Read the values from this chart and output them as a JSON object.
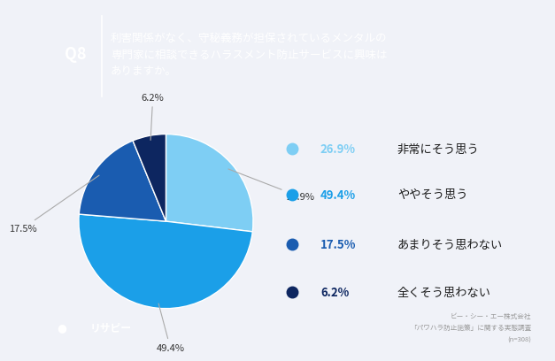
{
  "title_q": "Q8",
  "title_text": "利害関係がなく、守秘義務が担保されているメンタルの\n専門家に相談できるハラスメント防止サービスに興味は\nありますか。",
  "slices": [
    26.9,
    49.4,
    17.5,
    6.2
  ],
  "labels": [
    "26.9%",
    "49.4%",
    "17.5%",
    "6.2%"
  ],
  "legend_pcts": [
    "26.9%",
    "49.4%",
    "17.5%",
    "6.2%"
  ],
  "legend_texts": [
    "非常にそう思う",
    "ややそう思う",
    "あまりそう思わない",
    "全くそう思わない"
  ],
  "colors": [
    "#7ECEF4",
    "#1B9FE8",
    "#1A5CB0",
    "#0D2660"
  ],
  "header_bg": "#3355AA",
  "chart_bg": "#FFFFFF",
  "outer_bg": "#F0F2F8",
  "source_line1": "ビー・シー・エー株式会社",
  "source_line2": "「パワハラ防止施策」に関する実態調査",
  "source_line3": "(n=308)",
  "logo_text": "リサピー",
  "logo_bg": "#3355AA",
  "sidebar_color": "#3355AA"
}
